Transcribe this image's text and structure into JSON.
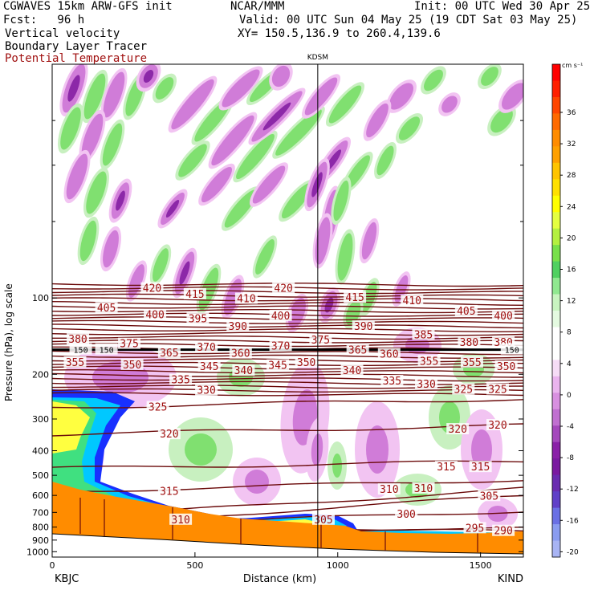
{
  "header": {
    "title_left": "CGWAVES 15km ARW-GFS init",
    "title_center": "NCAR/MMM",
    "init": "Init: 00 UTC Wed 30 Apr 25",
    "fcst": "Fcst:   96 h",
    "valid": "Valid: 00 UTC Sun 04 May 25 (19 CDT Sat 03 May 25)",
    "field1": "Vertical velocity",
    "xy": "XY= 150.5,136.9 to 260.4,139.6",
    "field2": "Boundary Layer Tracer",
    "field3": "Potential Temperature"
  },
  "colors": {
    "theta": "#6b0a0a",
    "text_red": "#a01010",
    "terrain": "#ff8c00",
    "tracer_blue": "#1830ff",
    "tracer_cyan": "#00c8ff",
    "tracer_yellow": "#ffff40",
    "down_light": "#f2c4f2",
    "down_mid": "#d07cd8",
    "down_dark": "#8c28a8",
    "up_light": "#c8f0c0",
    "up_mid": "#80e070"
  },
  "chart_data": {
    "type": "cross-section",
    "station_marker": "KDSM",
    "xlabel": "Distance (km)",
    "ylabel": "Pressure (hPa), log scale",
    "xlim": [
      0,
      1650
    ],
    "ylim": [
      1050,
      12
    ],
    "y_scale": "log",
    "x_ticks": [
      0,
      500,
      1000,
      1500
    ],
    "y_ticks": [
      100,
      200,
      300,
      400,
      500,
      600,
      700,
      800,
      900,
      1000
    ],
    "endpoints": {
      "left": "KBJC",
      "right": "KIND"
    },
    "station_x": 930,
    "theta_labels": [
      {
        "t": "420",
        "x": 350,
        "p": 92
      },
      {
        "t": "415",
        "x": 500,
        "p": 97
      },
      {
        "t": "410",
        "x": 680,
        "p": 101
      },
      {
        "t": "420",
        "x": 810,
        "p": 92
      },
      {
        "t": "415",
        "x": 1060,
        "p": 100
      },
      {
        "t": "410",
        "x": 1260,
        "p": 103
      },
      {
        "t": "405",
        "x": 190,
        "p": 110
      },
      {
        "t": "400",
        "x": 360,
        "p": 117
      },
      {
        "t": "395",
        "x": 510,
        "p": 121
      },
      {
        "t": "400",
        "x": 800,
        "p": 118
      },
      {
        "t": "405",
        "x": 1450,
        "p": 113
      },
      {
        "t": "400",
        "x": 1580,
        "p": 118
      },
      {
        "t": "390",
        "x": 650,
        "p": 130
      },
      {
        "t": "390",
        "x": 1090,
        "p": 130
      },
      {
        "t": "385",
        "x": 1300,
        "p": 140
      },
      {
        "t": "380",
        "x": 90,
        "p": 146
      },
      {
        "t": "375",
        "x": 270,
        "p": 152
      },
      {
        "t": "375",
        "x": 940,
        "p": 147
      },
      {
        "t": "380",
        "x": 1460,
        "p": 150
      },
      {
        "t": "380",
        "x": 1580,
        "p": 150
      },
      {
        "t": "370",
        "x": 540,
        "p": 157
      },
      {
        "t": "370",
        "x": 800,
        "p": 155
      },
      {
        "t": "150",
        "x": 100,
        "p": 160
      },
      {
        "t": "150",
        "x": 190,
        "p": 160
      },
      {
        "t": "150",
        "x": 1610,
        "p": 160
      },
      {
        "t": "365",
        "x": 410,
        "p": 165
      },
      {
        "t": "365",
        "x": 1070,
        "p": 161
      },
      {
        "t": "360",
        "x": 660,
        "p": 166
      },
      {
        "t": "360",
        "x": 1180,
        "p": 167
      },
      {
        "t": "355",
        "x": 80,
        "p": 180
      },
      {
        "t": "355",
        "x": 1320,
        "p": 178
      },
      {
        "t": "355",
        "x": 1470,
        "p": 180
      },
      {
        "t": "350",
        "x": 280,
        "p": 184
      },
      {
        "t": "350",
        "x": 890,
        "p": 180
      },
      {
        "t": "350",
        "x": 1590,
        "p": 187
      },
      {
        "t": "345",
        "x": 550,
        "p": 187
      },
      {
        "t": "345",
        "x": 790,
        "p": 185
      },
      {
        "t": "340",
        "x": 670,
        "p": 194
      },
      {
        "t": "340",
        "x": 1050,
        "p": 194
      },
      {
        "t": "335",
        "x": 450,
        "p": 211
      },
      {
        "t": "335",
        "x": 1190,
        "p": 213
      },
      {
        "t": "330",
        "x": 540,
        "p": 232
      },
      {
        "t": "330",
        "x": 1310,
        "p": 219
      },
      {
        "t": "325",
        "x": 1440,
        "p": 230
      },
      {
        "t": "325",
        "x": 1560,
        "p": 230
      },
      {
        "t": "325",
        "x": 370,
        "p": 270
      },
      {
        "t": "320",
        "x": 410,
        "p": 345
      },
      {
        "t": "320",
        "x": 1420,
        "p": 330
      },
      {
        "t": "320",
        "x": 1560,
        "p": 318
      },
      {
        "t": "315",
        "x": 1380,
        "p": 465
      },
      {
        "t": "315",
        "x": 1500,
        "p": 465
      },
      {
        "t": "315",
        "x": 410,
        "p": 580
      },
      {
        "t": "310",
        "x": 450,
        "p": 750
      },
      {
        "t": "310",
        "x": 1180,
        "p": 570
      },
      {
        "t": "310",
        "x": 1300,
        "p": 565
      },
      {
        "t": "305",
        "x": 950,
        "p": 750
      },
      {
        "t": "305",
        "x": 1530,
        "p": 605
      },
      {
        "t": "300",
        "x": 1240,
        "p": 715
      },
      {
        "t": "295",
        "x": 1480,
        "p": 810
      },
      {
        "t": "290",
        "x": 1580,
        "p": 830
      }
    ],
    "colorbar": {
      "units": "cm s⁻¹",
      "labels": [
        "36",
        "32",
        "28",
        "24",
        "20",
        "16",
        "12",
        "8",
        "4",
        "0",
        "-4",
        "-8",
        "-12",
        "-16",
        "-20"
      ],
      "colors": [
        "#ff0000",
        "#ff2000",
        "#ff4600",
        "#ff6a00",
        "#ff8c00",
        "#ffa000",
        "#ffc400",
        "#ffe000",
        "#ffff00",
        "#e4ff40",
        "#b4f040",
        "#78e04a",
        "#50d060",
        "#90e890",
        "#c8f4c0",
        "#e4fae0",
        "#ffffff",
        "#ffffff",
        "#f6dcf6",
        "#eab4ee",
        "#d890e0",
        "#c070d0",
        "#a448bc",
        "#8a20a8",
        "#7a1aa0",
        "#6a2cb0",
        "#6040c8",
        "#6a70e4",
        "#8a9cf0",
        "#a8b4f4"
      ]
    }
  }
}
